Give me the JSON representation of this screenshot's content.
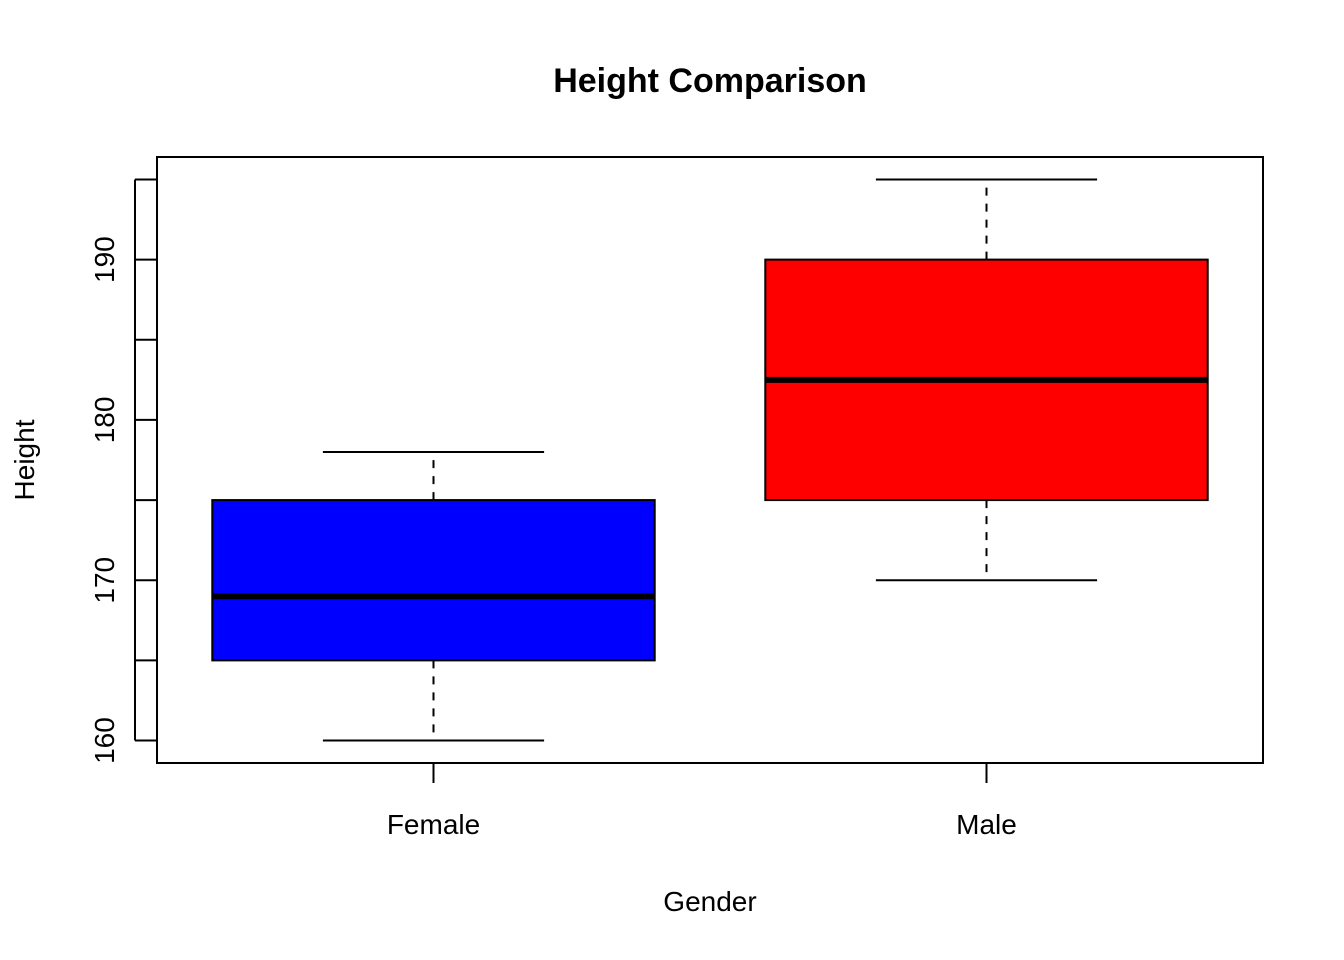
{
  "chart_data": {
    "type": "box",
    "title": "Height Comparison",
    "xlabel": "Gender",
    "ylabel": "Height",
    "categories": [
      "Female",
      "Male"
    ],
    "boxes": [
      {
        "category": "Female",
        "min": 160,
        "q1": 165,
        "median": 169,
        "q3": 175,
        "max": 178,
        "color": "#0000ff"
      },
      {
        "category": "Male",
        "min": 170,
        "q1": 175,
        "median": 182.5,
        "q3": 190,
        "max": 195,
        "color": "#ff0000"
      }
    ],
    "yticks": [
      160,
      165,
      170,
      175,
      180,
      185,
      190,
      195
    ],
    "ytick_labels": [
      "160",
      "",
      "170",
      "",
      "180",
      "",
      "190",
      ""
    ],
    "ylim": [
      158.6,
      196.4
    ],
    "grid": false,
    "legend": "none"
  }
}
